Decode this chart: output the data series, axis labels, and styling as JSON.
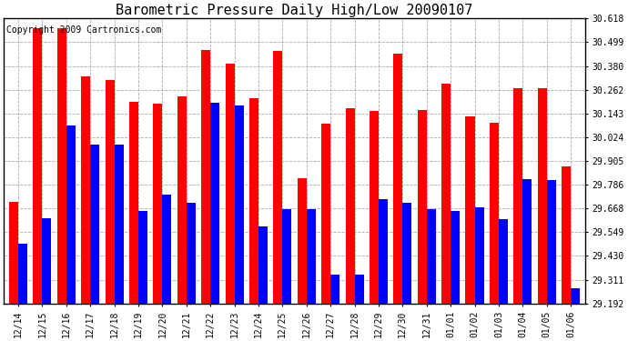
{
  "title": "Barometric Pressure Daily High/Low 20090107",
  "copyright": "Copyright 2009 Cartronics.com",
  "categories": [
    "12/14",
    "12/15",
    "12/16",
    "12/17",
    "12/18",
    "12/19",
    "12/20",
    "12/21",
    "12/22",
    "12/23",
    "12/24",
    "12/25",
    "12/26",
    "12/27",
    "12/28",
    "12/29",
    "12/30",
    "12/31",
    "01/01",
    "01/02",
    "01/03",
    "01/04",
    "01/05",
    "01/06"
  ],
  "highs": [
    29.7,
    30.57,
    30.57,
    30.33,
    30.31,
    30.2,
    30.19,
    30.23,
    30.46,
    30.39,
    30.22,
    30.455,
    29.82,
    30.09,
    30.17,
    30.155,
    30.44,
    30.16,
    30.29,
    30.13,
    30.095,
    30.27,
    30.27,
    29.88
  ],
  "lows": [
    29.49,
    29.62,
    30.085,
    29.985,
    29.985,
    29.655,
    29.735,
    29.695,
    30.195,
    30.185,
    29.58,
    29.665,
    29.665,
    29.335,
    29.335,
    29.715,
    29.695,
    29.665,
    29.655,
    29.675,
    29.615,
    29.815,
    29.81,
    29.27
  ],
  "ymin": 29.192,
  "ymax": 30.618,
  "yticks": [
    29.192,
    29.311,
    29.43,
    29.549,
    29.668,
    29.786,
    29.905,
    30.024,
    30.143,
    30.262,
    30.38,
    30.499,
    30.618
  ],
  "high_color": "#ff0000",
  "low_color": "#0000ff",
  "bg_color": "#ffffff",
  "grid_color": "#aaaaaa",
  "title_fontsize": 11,
  "copyright_fontsize": 7
}
